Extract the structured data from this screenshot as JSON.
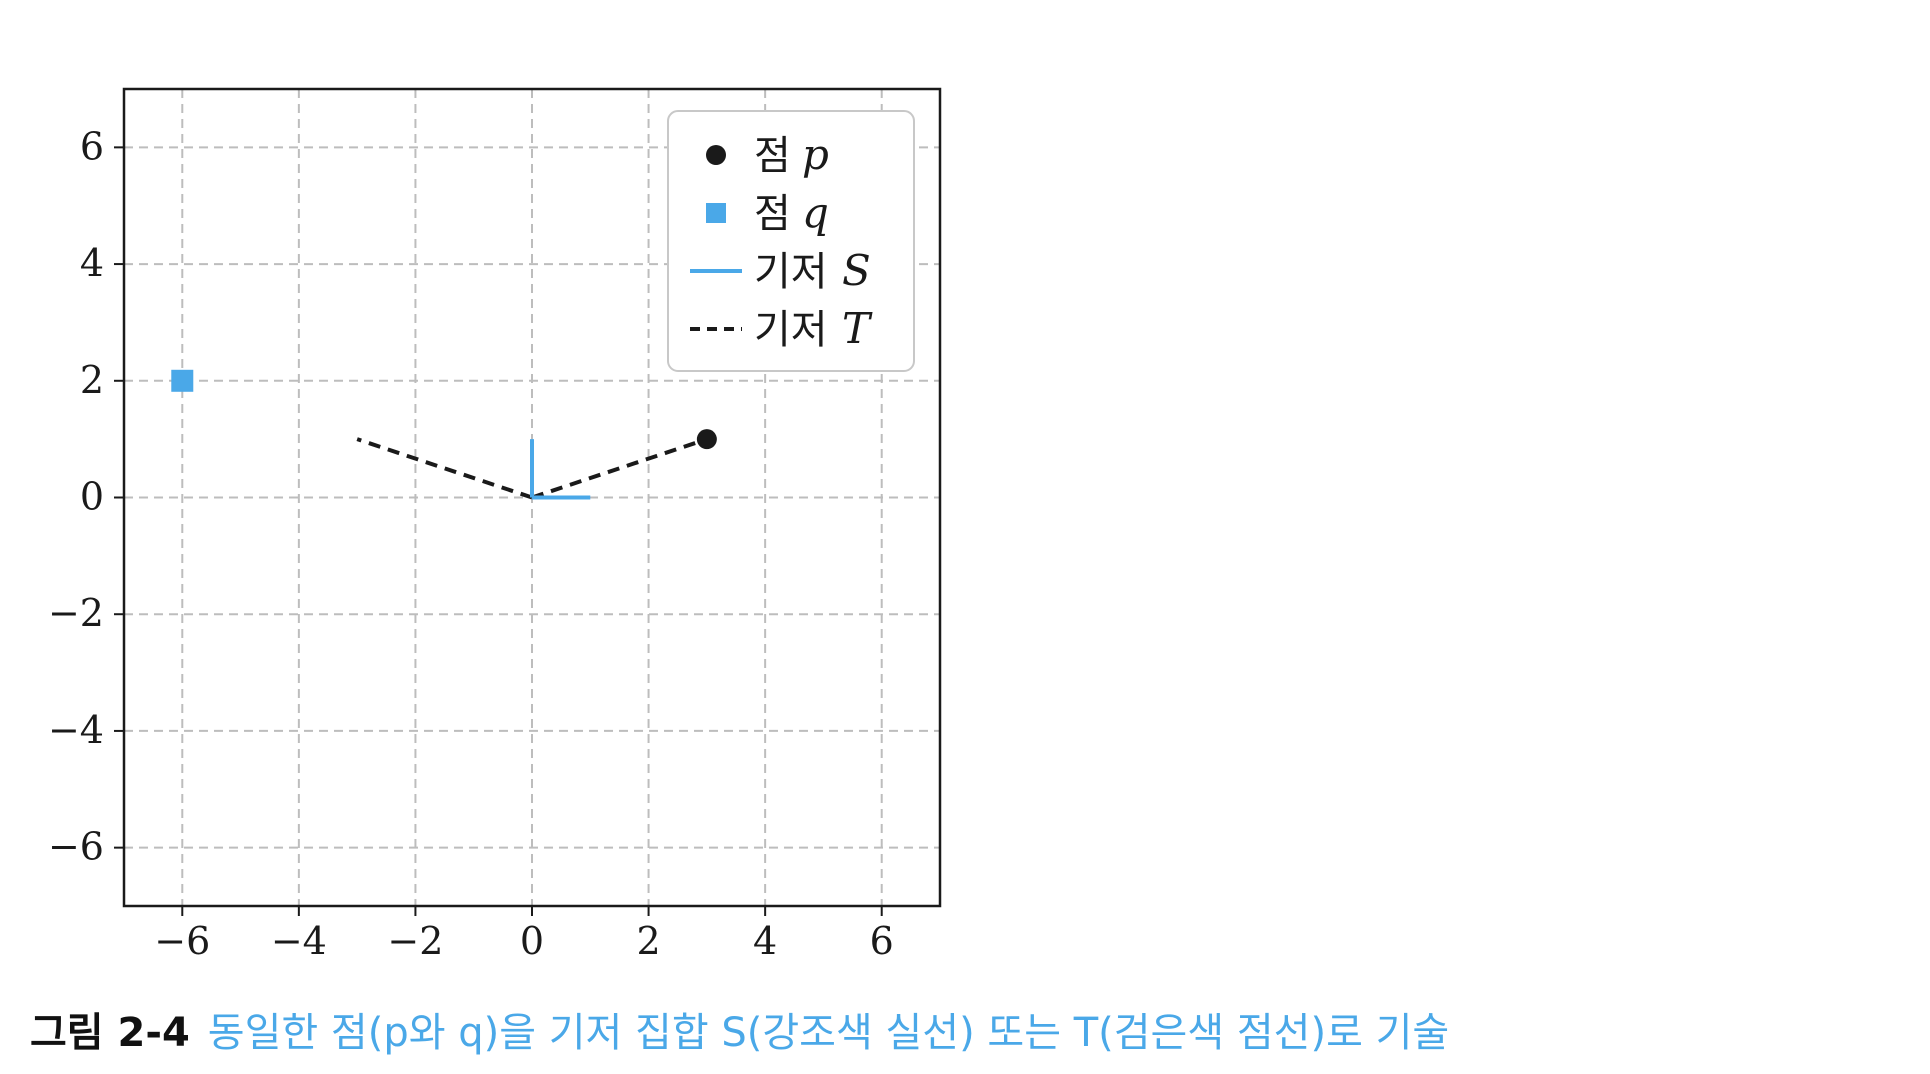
{
  "chart_data": {
    "type": "scatter",
    "xlim": [
      -7,
      7
    ],
    "ylim": [
      -7,
      7
    ],
    "xticks": [
      -6,
      -4,
      -2,
      0,
      2,
      4,
      6
    ],
    "yticks": [
      -6,
      -4,
      -2,
      0,
      2,
      4,
      6
    ],
    "grid": true,
    "legend_position": "top-right",
    "points": [
      {
        "name": "점 p",
        "marker": "circle",
        "color": "#1a1a1a",
        "x": 3,
        "y": 1
      },
      {
        "name": "점 q",
        "marker": "square",
        "color": "#4aa8e8",
        "x": -6,
        "y": 2
      }
    ],
    "basis_S": {
      "name": "기저 S",
      "color": "#4aa8e8",
      "style": "solid",
      "vectors": [
        [
          1,
          0
        ],
        [
          0,
          1
        ]
      ]
    },
    "basis_T": {
      "name": "기저 T",
      "color": "#1a1a1a",
      "style": "dashed",
      "vectors": [
        [
          3,
          1
        ],
        [
          -3,
          1
        ]
      ]
    },
    "legend": [
      {
        "label": "점",
        "math": "p",
        "kind": "circle",
        "color": "#1a1a1a"
      },
      {
        "label": "점",
        "math": "q",
        "kind": "square",
        "color": "#4aa8e8"
      },
      {
        "label": "기저",
        "math": "S",
        "kind": "solid-line",
        "color": "#4aa8e8"
      },
      {
        "label": "기저",
        "math": "T",
        "kind": "dashed-line",
        "color": "#1a1a1a"
      }
    ]
  },
  "caption": {
    "number": "그림 2-4",
    "text": "동일한 점(p와 q)을 기저 집합 S(강조색 실선) 또는 T(검은색 점선)로 기술"
  }
}
